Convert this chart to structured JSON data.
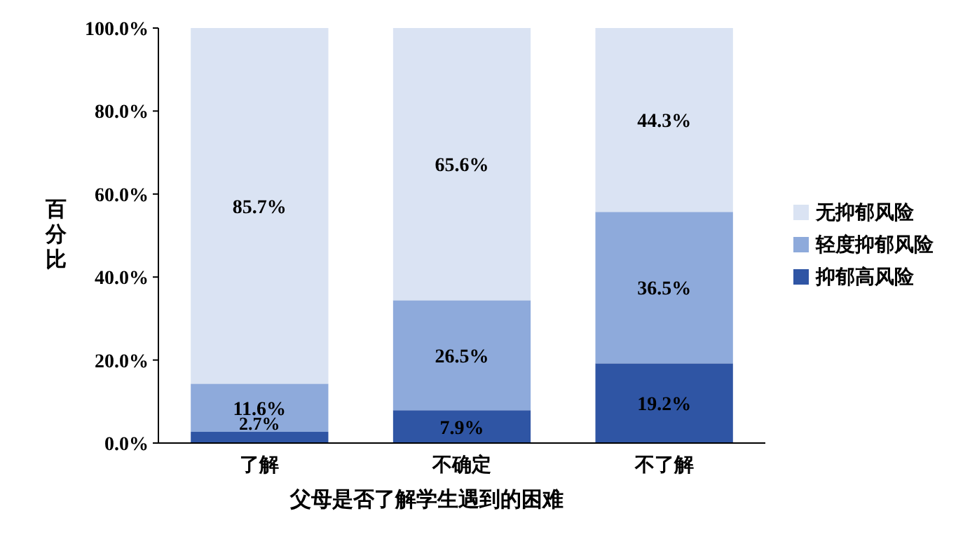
{
  "chart_data": {
    "type": "bar",
    "stacked": true,
    "categories": [
      "了解",
      "不确定",
      "不了解"
    ],
    "series": [
      {
        "name": "抑郁高风险",
        "color": "#2f55a4",
        "values": [
          2.7,
          7.9,
          19.2
        ],
        "value_labels": [
          "2.7%",
          "7.9%",
          "19.2%"
        ]
      },
      {
        "name": "轻度抑郁风险",
        "color": "#8eaadb",
        "values": [
          11.6,
          26.5,
          36.5
        ],
        "value_labels": [
          "11.6%",
          "26.5%",
          "36.5%"
        ]
      },
      {
        "name": "无抑郁风险",
        "color": "#dae3f3",
        "values": [
          85.7,
          65.6,
          44.3
        ],
        "value_labels": [
          "85.7%",
          "65.6%",
          "44.3%"
        ]
      }
    ],
    "ylim": [
      0,
      100
    ],
    "yticks": [
      {
        "value": 0,
        "label": "0.0%"
      },
      {
        "value": 20,
        "label": "20.0%"
      },
      {
        "value": 40,
        "label": "40.0%"
      },
      {
        "value": 60,
        "label": "60.0%"
      },
      {
        "value": 80,
        "label": "80.0%"
      },
      {
        "value": 100,
        "label": "100.0%"
      }
    ],
    "ylabel": "百分比",
    "xlabel": "父母是否了解学生遇到的困难",
    "legend": "right"
  }
}
